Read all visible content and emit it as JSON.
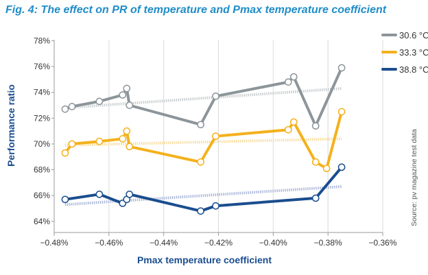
{
  "chart_data": {
    "type": "line",
    "title": "Fig. 4: The effect on PR of temperature and Pmax temperature coefficient",
    "xlabel": "Pmax temperature coefficient",
    "ylabel": "Performance ratio",
    "xlim": [
      -0.48,
      -0.36
    ],
    "ylim": [
      64,
      78
    ],
    "x_ticks": [
      "−0.48%",
      "−0.46%",
      "−0.44%",
      "−0.42%",
      "−0.40%",
      "−0.38%",
      "−0.36%"
    ],
    "x_tick_values": [
      -0.48,
      -0.46,
      -0.44,
      -0.42,
      -0.4,
      -0.38,
      -0.36
    ],
    "y_ticks": [
      "64%",
      "66%",
      "68%",
      "70%",
      "72%",
      "74%",
      "76%",
      "78%"
    ],
    "y_tick_values": [
      64,
      66,
      68,
      70,
      72,
      74,
      76,
      78
    ],
    "grid": "vertical",
    "legend_position": "top-right",
    "source": "Source: pv magazine test data",
    "series": [
      {
        "name": "30.6 °C",
        "color": "#8c959a",
        "trend_color": "#c7cccf",
        "x": [
          -0.476,
          -0.4735,
          -0.4635,
          -0.455,
          -0.4535,
          -0.4525,
          -0.4265,
          -0.421,
          -0.3945,
          -0.3925,
          -0.3845,
          -0.375
        ],
        "y": [
          72.7,
          72.9,
          73.3,
          73.8,
          74.3,
          73.0,
          71.5,
          73.7,
          74.8,
          75.2,
          71.4,
          75.9
        ],
        "trend": [
          [
            -0.476,
            72.8
          ],
          [
            -0.375,
            74.3
          ]
        ]
      },
      {
        "name": "33.3 °C",
        "color": "#f4b11c",
        "trend_color": "#f7dca0",
        "x": [
          -0.476,
          -0.4735,
          -0.4635,
          -0.455,
          -0.4535,
          -0.4525,
          -0.4265,
          -0.421,
          -0.3945,
          -0.3925,
          -0.3845,
          -0.3805,
          -0.375
        ],
        "y": [
          69.3,
          70.0,
          70.2,
          70.4,
          71.0,
          69.8,
          68.6,
          70.6,
          71.1,
          71.7,
          68.6,
          68.1,
          72.5
        ],
        "trend": [
          [
            -0.476,
            69.9
          ],
          [
            -0.375,
            70.4
          ]
        ]
      },
      {
        "name": "38.8 °C",
        "color": "#1a4d8f",
        "trend_color": "#a9b6d8",
        "x": [
          -0.476,
          -0.4635,
          -0.455,
          -0.4535,
          -0.4525,
          -0.4265,
          -0.421,
          -0.3845,
          -0.375
        ],
        "y": [
          65.7,
          66.1,
          65.4,
          65.7,
          66.1,
          64.8,
          65.2,
          65.8,
          68.2
        ],
        "trend": [
          [
            -0.476,
            65.3
          ],
          [
            -0.375,
            66.7
          ]
        ]
      }
    ]
  }
}
